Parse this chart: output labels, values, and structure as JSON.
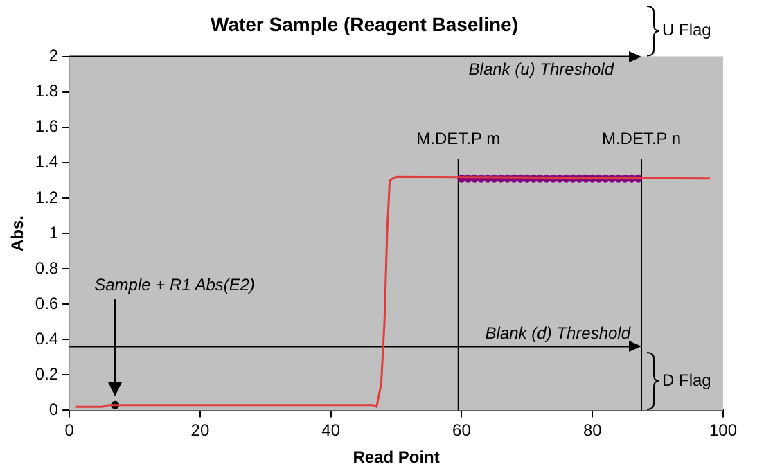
{
  "chart_data": {
    "type": "line",
    "title": "Water Sample (Reagent Baseline)",
    "xlabel": "Read Point",
    "ylabel": "Abs.",
    "xlim": [
      0,
      100
    ],
    "xticks": [
      0,
      20,
      40,
      60,
      80,
      100
    ],
    "ylim": [
      0,
      2
    ],
    "yticks": [
      0,
      0.2,
      0.4,
      0.6,
      0.8,
      1,
      1.2,
      1.4,
      1.6,
      1.8,
      2
    ],
    "grid": false,
    "legend": false,
    "series": [
      {
        "type": "line",
        "color": "#e03c3c",
        "marker": "none",
        "x": [
          1,
          5,
          6,
          46.5,
          47,
          47.7,
          48.2,
          48.6,
          49,
          50,
          98
        ],
        "values": [
          0.02,
          0.02,
          0.03,
          0.03,
          0.02,
          0.15,
          0.5,
          1.0,
          1.3,
          1.32,
          1.31
        ]
      },
      {
        "type": "scatter",
        "color": "#800080",
        "marker": "circle",
        "x": [
          60,
          61,
          62,
          63,
          64,
          65,
          66,
          67,
          68,
          69,
          70,
          71,
          72,
          73,
          74,
          75,
          76,
          77,
          78,
          79,
          80,
          81,
          82,
          83,
          84,
          85,
          86,
          87
        ],
        "values": [
          1.31,
          1.31,
          1.31,
          1.31,
          1.31,
          1.31,
          1.31,
          1.31,
          1.31,
          1.31,
          1.31,
          1.31,
          1.31,
          1.31,
          1.31,
          1.31,
          1.31,
          1.31,
          1.31,
          1.31,
          1.31,
          1.31,
          1.31,
          1.31,
          1.31,
          1.31,
          1.31,
          1.31
        ]
      },
      {
        "type": "scatter",
        "color": "#000000",
        "marker": "circle",
        "x": [
          7
        ],
        "values": [
          0.03
        ]
      }
    ],
    "ref_lines": [
      {
        "axis": "y",
        "value": 2,
        "label": "Blank (u) Threshold"
      },
      {
        "axis": "y",
        "value": 0.36,
        "label": "Blank (d) Threshold"
      },
      {
        "axis": "x",
        "value": 59.5,
        "label": "M.DET.P m"
      },
      {
        "axis": "x",
        "value": 87.5,
        "label": "M.DET.P n"
      }
    ],
    "annotations": [
      "Sample + R1 Abs(E2)",
      "U Flag",
      "D Flag"
    ]
  }
}
